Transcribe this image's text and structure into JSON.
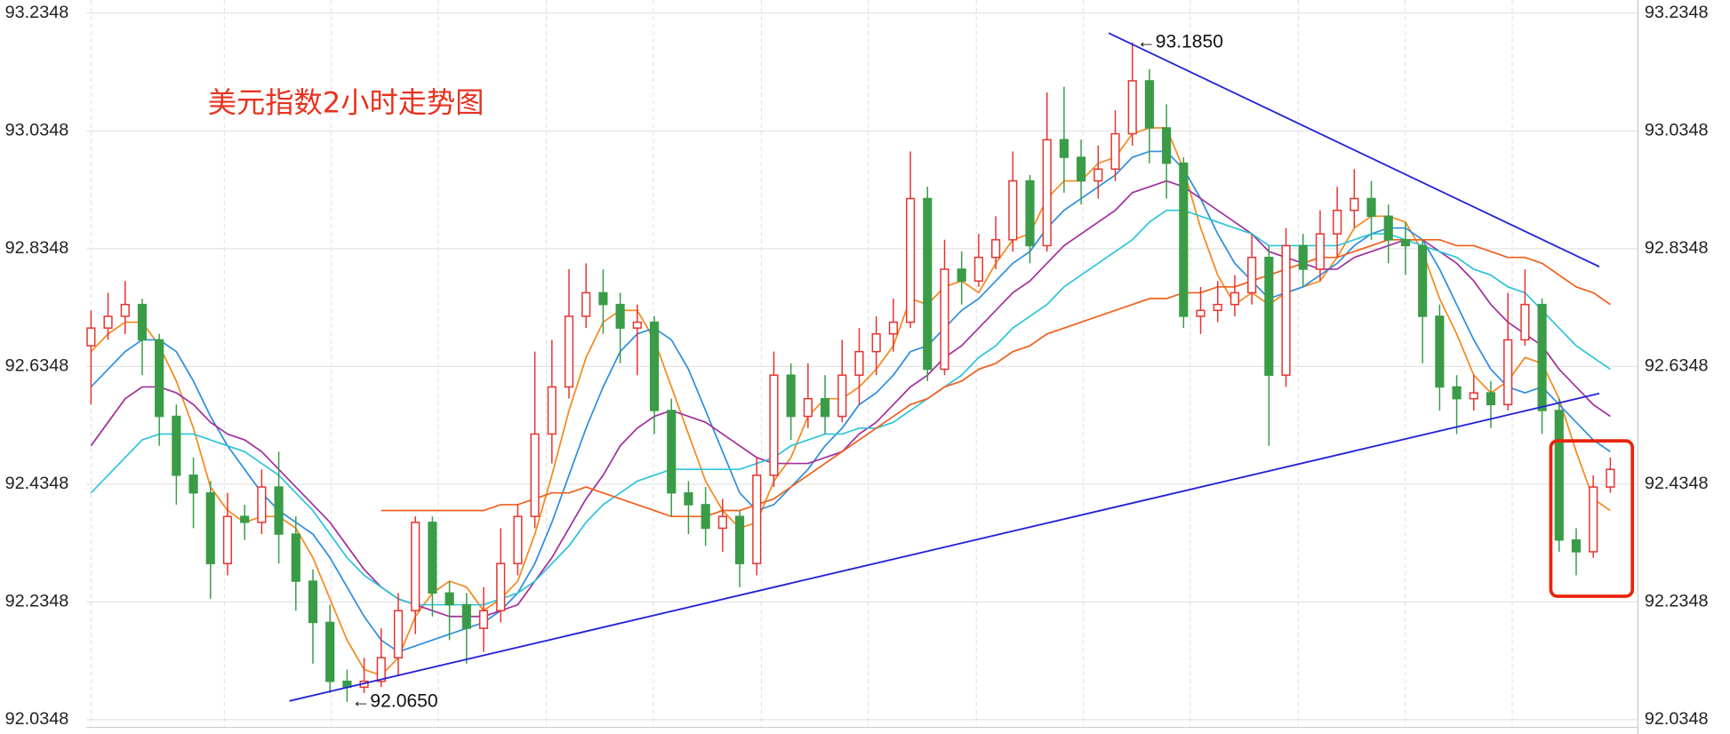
{
  "chart_data": {
    "type": "candlestick",
    "title": "美元指数2小时走势图",
    "categories": [
      null,
      null,
      null,
      null,
      null,
      null,
      null,
      null,
      null,
      null,
      null,
      null,
      null,
      null,
      null,
      null,
      null,
      null,
      null,
      null,
      null,
      null,
      null,
      null,
      null,
      null,
      null,
      null,
      null,
      null,
      null,
      null,
      null,
      null,
      null,
      null,
      null,
      null,
      null,
      null,
      null,
      null,
      null,
      null,
      null,
      null,
      null,
      null,
      null,
      null,
      null,
      null,
      null,
      null,
      null,
      null,
      null,
      null,
      null,
      null,
      null,
      null,
      null,
      null,
      null,
      null,
      null,
      null,
      null,
      null,
      null,
      null,
      null,
      null,
      null,
      null,
      null,
      null,
      null,
      null,
      null,
      null,
      null,
      null,
      null,
      null,
      null,
      null,
      null,
      null
    ],
    "open": [
      92.67,
      92.7,
      92.72,
      92.74,
      92.68,
      92.55,
      92.45,
      92.42,
      92.3,
      92.38,
      92.37,
      92.43,
      92.35,
      92.27,
      92.2,
      92.1,
      92.09,
      92.1,
      92.14,
      92.22,
      92.37,
      92.25,
      92.23,
      92.19,
      92.22,
      92.3,
      92.38,
      92.52,
      92.6,
      92.72,
      92.76,
      92.74,
      92.7,
      92.71,
      92.56,
      92.42,
      92.4,
      92.36,
      92.38,
      92.3,
      92.45,
      92.62,
      92.55,
      92.58,
      92.55,
      92.62,
      92.66,
      92.69,
      92.71,
      92.92,
      92.63,
      92.8,
      92.78,
      92.82,
      92.85,
      92.95,
      92.84,
      93.02,
      92.99,
      92.95,
      92.97,
      93.03,
      93.12,
      93.04,
      92.98,
      92.72,
      92.73,
      92.74,
      92.76,
      92.82,
      92.62,
      92.84,
      92.8,
      92.86,
      92.9,
      92.92,
      92.89,
      92.85,
      92.84,
      92.72,
      92.6,
      92.58,
      92.59,
      92.57,
      92.68,
      92.74,
      92.56,
      92.34,
      92.32,
      92.43
    ],
    "high": [
      92.73,
      92.76,
      92.78,
      92.75,
      92.69,
      92.57,
      92.48,
      92.44,
      92.42,
      92.4,
      92.46,
      92.49,
      92.38,
      92.29,
      92.23,
      92.12,
      92.14,
      92.19,
      92.25,
      92.38,
      92.38,
      92.27,
      92.25,
      92.26,
      92.36,
      92.4,
      92.66,
      92.68,
      92.8,
      92.81,
      92.8,
      92.76,
      92.74,
      92.72,
      92.58,
      92.44,
      92.43,
      92.41,
      92.39,
      92.48,
      92.66,
      92.64,
      92.64,
      92.62,
      92.68,
      92.7,
      92.72,
      92.75,
      93.0,
      92.94,
      92.85,
      92.83,
      92.86,
      92.89,
      93.0,
      92.96,
      93.1,
      93.11,
      93.02,
      93.01,
      93.07,
      93.185,
      93.14,
      93.08,
      92.99,
      92.77,
      92.78,
      92.79,
      92.86,
      92.84,
      92.87,
      92.86,
      92.9,
      92.94,
      92.97,
      92.95,
      92.91,
      92.88,
      92.85,
      92.74,
      92.62,
      92.62,
      92.61,
      92.76,
      92.8,
      92.75,
      92.58,
      92.36,
      92.45,
      92.48
    ],
    "low": [
      92.57,
      92.68,
      92.69,
      92.62,
      92.5,
      92.4,
      92.36,
      92.24,
      92.28,
      92.34,
      92.35,
      92.3,
      92.22,
      92.13,
      92.08,
      92.065,
      92.08,
      92.09,
      92.11,
      92.18,
      92.21,
      92.17,
      92.13,
      92.15,
      92.2,
      92.28,
      92.36,
      92.47,
      92.58,
      92.7,
      92.69,
      92.64,
      92.62,
      92.52,
      92.38,
      92.35,
      92.33,
      92.32,
      92.26,
      92.28,
      92.43,
      92.51,
      92.53,
      92.52,
      92.54,
      92.57,
      92.62,
      92.66,
      92.7,
      92.61,
      92.62,
      92.74,
      92.77,
      92.8,
      92.83,
      92.81,
      92.83,
      92.93,
      92.91,
      92.92,
      92.95,
      93.01,
      92.98,
      92.92,
      92.7,
      92.69,
      92.71,
      92.72,
      92.74,
      92.5,
      92.6,
      92.77,
      92.78,
      92.82,
      92.87,
      92.85,
      92.81,
      92.79,
      92.64,
      92.56,
      92.52,
      92.56,
      92.53,
      92.56,
      92.67,
      92.52,
      92.32,
      92.28,
      92.31,
      92.42
    ],
    "close": [
      92.7,
      92.72,
      92.74,
      92.68,
      92.55,
      92.45,
      92.42,
      92.3,
      92.38,
      92.37,
      92.43,
      92.35,
      92.27,
      92.2,
      92.1,
      92.09,
      92.1,
      92.14,
      92.22,
      92.37,
      92.25,
      92.23,
      92.19,
      92.22,
      92.3,
      92.38,
      92.52,
      92.6,
      92.72,
      92.76,
      92.74,
      92.7,
      92.71,
      92.56,
      92.42,
      92.4,
      92.36,
      92.38,
      92.3,
      92.45,
      92.62,
      92.55,
      92.58,
      92.55,
      92.62,
      92.66,
      92.69,
      92.71,
      92.92,
      92.63,
      92.8,
      92.78,
      92.82,
      92.85,
      92.95,
      92.84,
      93.02,
      92.99,
      92.95,
      92.97,
      93.03,
      93.12,
      93.04,
      92.98,
      92.72,
      92.73,
      92.74,
      92.76,
      92.82,
      92.62,
      92.84,
      92.8,
      92.86,
      92.9,
      92.92,
      92.89,
      92.85,
      92.84,
      92.72,
      92.6,
      92.58,
      92.59,
      92.57,
      92.68,
      92.74,
      92.56,
      92.34,
      92.32,
      92.43,
      92.46
    ],
    "up_color": "#e8322f",
    "down_color": "#3a9c47",
    "lines": [
      {
        "color": "#f5891f",
        "values": [
          92.66,
          92.69,
          92.71,
          92.71,
          92.67,
          92.61,
          92.53,
          92.43,
          92.39,
          92.37,
          92.38,
          92.38,
          92.36,
          92.31,
          92.24,
          92.17,
          92.12,
          92.11,
          92.14,
          92.21,
          92.25,
          92.27,
          92.26,
          92.22,
          92.24,
          92.27,
          92.35,
          92.45,
          92.56,
          92.65,
          92.71,
          92.73,
          92.73,
          92.68,
          92.6,
          92.52,
          92.44,
          92.39,
          92.36,
          92.37,
          92.44,
          92.48,
          92.55,
          92.58,
          92.58,
          92.6,
          92.63,
          92.67,
          92.75,
          92.74,
          92.77,
          92.78,
          92.76,
          92.81,
          92.85,
          92.86,
          92.92,
          92.95,
          92.95,
          92.98,
          92.99,
          93.03,
          93.04,
          93.04,
          92.97,
          92.87,
          92.79,
          92.74,
          92.76,
          92.74,
          92.76,
          92.77,
          92.78,
          92.82,
          92.87,
          92.89,
          92.89,
          92.88,
          92.83,
          92.75,
          92.69,
          92.62,
          92.59,
          92.61,
          92.65,
          92.64,
          92.58,
          92.49,
          92.41,
          92.39
        ]
      },
      {
        "color": "#2f8fe0",
        "values": [
          92.6,
          92.63,
          92.66,
          92.68,
          92.68,
          92.66,
          92.61,
          92.55,
          92.5,
          92.46,
          92.42,
          92.39,
          92.37,
          92.35,
          92.31,
          92.26,
          92.21,
          92.17,
          92.15,
          92.16,
          92.17,
          92.18,
          92.19,
          92.2,
          92.22,
          92.25,
          92.3,
          92.37,
          92.45,
          92.53,
          92.6,
          92.66,
          92.69,
          92.7,
          92.68,
          92.63,
          92.56,
          92.49,
          92.42,
          92.39,
          92.4,
          92.43,
          92.46,
          92.5,
          92.53,
          92.57,
          92.59,
          92.62,
          92.66,
          92.67,
          92.7,
          92.73,
          92.75,
          92.78,
          92.81,
          92.83,
          92.87,
          92.9,
          92.92,
          92.94,
          92.96,
          92.99,
          93.0,
          93.0,
          92.97,
          92.92,
          92.86,
          92.81,
          92.78,
          92.75,
          92.76,
          92.77,
          92.79,
          92.81,
          92.84,
          92.86,
          92.87,
          92.87,
          92.85,
          92.8,
          92.74,
          92.68,
          92.63,
          92.6,
          92.59,
          92.6,
          92.57,
          92.54,
          92.51,
          92.49
        ]
      },
      {
        "color": "#a2309e",
        "values": [
          92.5,
          92.54,
          92.58,
          92.6,
          92.6,
          92.59,
          92.57,
          92.54,
          92.52,
          92.51,
          92.49,
          92.46,
          92.43,
          92.4,
          92.37,
          92.33,
          92.29,
          92.26,
          92.24,
          92.23,
          92.22,
          92.21,
          92.21,
          92.21,
          92.22,
          92.23,
          92.27,
          92.31,
          92.36,
          92.41,
          92.45,
          92.5,
          92.53,
          92.55,
          92.56,
          92.55,
          92.54,
          92.52,
          92.5,
          92.48,
          92.47,
          92.47,
          92.47,
          92.48,
          92.49,
          92.52,
          92.54,
          92.57,
          92.6,
          92.62,
          92.65,
          92.67,
          92.7,
          92.73,
          92.76,
          92.78,
          92.81,
          92.84,
          92.86,
          92.88,
          92.9,
          92.93,
          92.94,
          92.95,
          92.94,
          92.92,
          92.9,
          92.88,
          92.86,
          92.83,
          92.82,
          92.81,
          92.8,
          92.8,
          92.82,
          92.83,
          92.84,
          92.85,
          92.85,
          92.83,
          92.81,
          92.78,
          92.74,
          92.71,
          92.69,
          92.67,
          92.63,
          92.6,
          92.57,
          92.55
        ]
      },
      {
        "color": "#2ec4dc",
        "values": [
          92.42,
          92.45,
          92.48,
          92.51,
          92.52,
          92.52,
          92.52,
          92.51,
          92.5,
          92.49,
          92.47,
          92.45,
          92.42,
          92.39,
          92.35,
          92.31,
          92.28,
          92.26,
          92.24,
          92.23,
          92.23,
          92.23,
          92.23,
          92.23,
          92.24,
          92.25,
          92.27,
          92.3,
          92.33,
          92.37,
          92.4,
          92.42,
          92.44,
          92.45,
          92.46,
          92.46,
          92.46,
          92.46,
          92.46,
          92.47,
          92.48,
          92.5,
          92.51,
          92.52,
          92.52,
          92.53,
          92.53,
          92.54,
          92.56,
          92.58,
          92.6,
          92.62,
          92.65,
          92.67,
          92.7,
          92.72,
          92.74,
          92.77,
          92.79,
          92.81,
          92.83,
          92.85,
          92.88,
          92.9,
          92.9,
          92.89,
          92.88,
          92.87,
          92.86,
          92.84,
          92.84,
          92.84,
          92.84,
          92.84,
          92.85,
          92.86,
          92.86,
          92.85,
          92.84,
          92.83,
          92.82,
          92.8,
          92.79,
          92.77,
          92.76,
          92.73,
          92.7,
          92.67,
          92.65,
          92.63
        ]
      },
      {
        "color": "#f0601a",
        "values": [
          null,
          null,
          null,
          null,
          null,
          null,
          null,
          null,
          null,
          null,
          null,
          null,
          null,
          null,
          null,
          null,
          null,
          92.39,
          92.39,
          92.39,
          92.39,
          92.39,
          92.39,
          92.39,
          92.4,
          92.4,
          92.41,
          92.42,
          92.42,
          92.43,
          92.42,
          92.41,
          92.4,
          92.39,
          92.38,
          92.38,
          92.38,
          92.39,
          92.39,
          92.4,
          92.41,
          92.43,
          92.45,
          92.47,
          92.49,
          92.51,
          92.53,
          92.55,
          92.57,
          92.58,
          92.6,
          92.61,
          92.63,
          92.64,
          92.66,
          92.67,
          92.69,
          92.7,
          92.71,
          92.72,
          92.73,
          92.74,
          92.75,
          92.75,
          92.76,
          92.76,
          92.77,
          92.77,
          92.78,
          92.79,
          92.8,
          92.81,
          92.82,
          92.82,
          92.83,
          92.84,
          92.85,
          92.85,
          92.85,
          92.85,
          92.84,
          92.84,
          92.83,
          92.82,
          92.82,
          92.81,
          92.79,
          92.77,
          92.76,
          92.74
        ]
      }
    ],
    "annotations": [
      {
        "value": 93.185,
        "label": "←93.1850"
      },
      {
        "value": 92.065,
        "label": "←92.0650"
      }
    ],
    "ylim": [
      92.0348,
      93.2348
    ],
    "yticks": [
      92.0348,
      92.2348,
      92.4348,
      92.6348,
      92.8348,
      93.0348,
      93.2348
    ],
    "grid": true
  }
}
